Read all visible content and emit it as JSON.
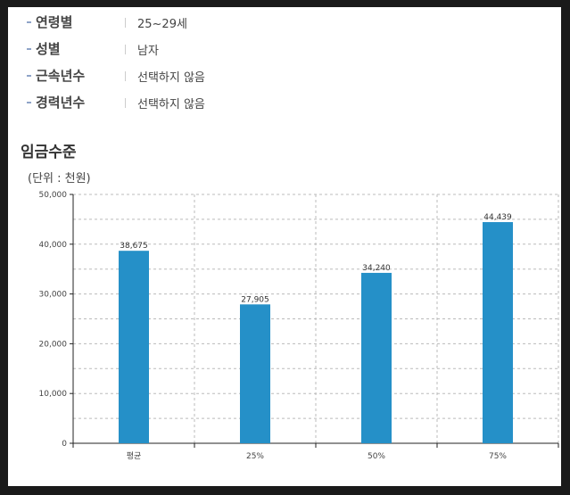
{
  "filters": [
    {
      "label": "연령별",
      "value": "25~29세"
    },
    {
      "label": "성별",
      "value": "남자"
    },
    {
      "label": "근속년수",
      "value": "선택하지 않음"
    },
    {
      "label": "경력년수",
      "value": "선택하지 않음"
    }
  ],
  "section_title": "임금수준",
  "chart_data": {
    "type": "bar",
    "unit_label": "(단위 : 천원)",
    "categories": [
      "평균",
      "25%",
      "50%",
      "75%"
    ],
    "values": [
      38675,
      27905,
      34240,
      44439
    ],
    "data_labels": [
      "38,675",
      "27,905",
      "34,240",
      "44,439"
    ],
    "y_ticks": [
      "0",
      "10,000",
      "20,000",
      "30,000",
      "40,000",
      "50,000"
    ],
    "ylim": [
      0,
      50000
    ],
    "bar_color": "#2590c8",
    "grid": true
  }
}
